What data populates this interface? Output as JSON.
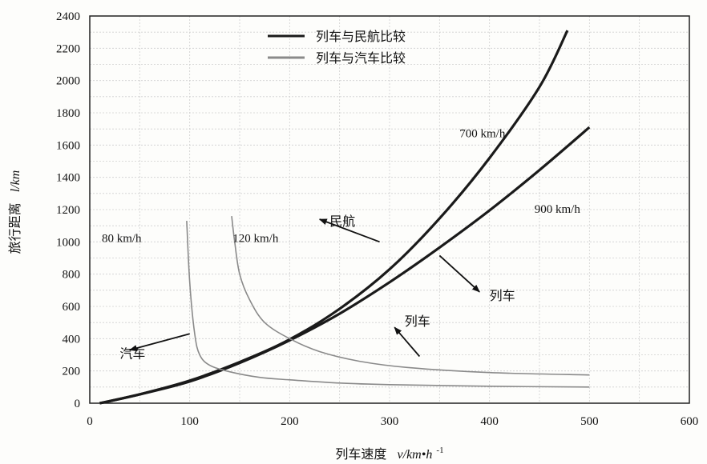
{
  "chart_data": {
    "type": "line",
    "xlabel": "列车速度",
    "xlabel_math": "v/km•h",
    "xlabel_exp": "-1",
    "ylabel": "旅行距离",
    "ylabel_math": "l/km",
    "xlim": [
      0,
      600
    ],
    "ylim": [
      0,
      2400
    ],
    "xticks": [
      0,
      100,
      200,
      300,
      400,
      500,
      600
    ],
    "yticks": [
      0,
      200,
      400,
      600,
      800,
      1000,
      1200,
      1400,
      1600,
      1800,
      2000,
      2200,
      2400
    ],
    "grid": true,
    "legend_position": "top-center",
    "legend": [
      {
        "label": "列车与民航比较",
        "color": "#1a1a1a"
      },
      {
        "label": "列车与汽车比较",
        "color": "#8a8a8a"
      }
    ],
    "series": [
      {
        "name": "700 km/h",
        "group": "列车与民航比较",
        "color": "#1a1a1a",
        "x": [
          10,
          50,
          100,
          150,
          200,
          250,
          300,
          350,
          400,
          450,
          478
        ],
        "y": [
          0,
          55,
          140,
          255,
          395,
          585,
          830,
          1145,
          1520,
          1960,
          2310
        ]
      },
      {
        "name": "900 km/h",
        "group": "列车与民航比较",
        "color": "#1a1a1a",
        "x": [
          10,
          50,
          100,
          150,
          200,
          250,
          300,
          350,
          400,
          450,
          500
        ],
        "y": [
          0,
          55,
          135,
          250,
          390,
          555,
          750,
          965,
          1195,
          1445,
          1710
        ]
      },
      {
        "name": "80 km/h",
        "group": "列车与汽车比较",
        "color": "#8a8a8a",
        "x": [
          97,
          100,
          105,
          110,
          120,
          140,
          170,
          200,
          250,
          300,
          400,
          500
        ],
        "y": [
          1130,
          750,
          430,
          300,
          235,
          195,
          160,
          145,
          125,
          115,
          105,
          100
        ]
      },
      {
        "name": "120 km/h",
        "group": "列车与汽车比较",
        "color": "#8a8a8a",
        "x": [
          142,
          145,
          150,
          160,
          175,
          200,
          230,
          270,
          320,
          400,
          500
        ],
        "y": [
          1160,
          1000,
          800,
          640,
          500,
          400,
          320,
          260,
          220,
          190,
          175
        ]
      }
    ],
    "annotations": [
      {
        "text": "700 km/h",
        "x": 370,
        "y": 1650
      },
      {
        "text": "900 km/h",
        "x": 445,
        "y": 1180
      },
      {
        "text": "80 km/h",
        "x": 12,
        "y": 1000
      },
      {
        "text": "120 km/h",
        "x": 143,
        "y": 1000
      },
      {
        "text": "民航",
        "x": 240,
        "y": 1100
      },
      {
        "text": "列车",
        "x": 400,
        "y": 640
      },
      {
        "text": "列车",
        "x": 315,
        "y": 480
      },
      {
        "text": "汽车",
        "x": 30,
        "y": 280
      }
    ]
  }
}
